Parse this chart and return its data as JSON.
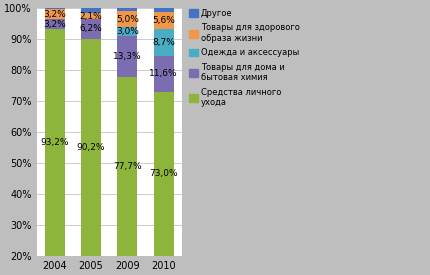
{
  "years": [
    "2004",
    "2005",
    "2009",
    "2010"
  ],
  "values": [
    [
      93.2,
      90.2,
      77.7,
      73.0
    ],
    [
      3.2,
      6.2,
      13.3,
      11.6
    ],
    [
      0.0,
      0.0,
      3.0,
      8.7
    ],
    [
      3.2,
      2.1,
      5.0,
      5.6
    ],
    [
      0.4,
      1.5,
      1.0,
      1.1
    ]
  ],
  "colors": [
    "#8DB53C",
    "#7B6DB0",
    "#4BACC6",
    "#F0974A",
    "#4472C4"
  ],
  "legend_labels": [
    "Другое",
    "Товары для здорового\nобраза жизни",
    "Одежда и аксессуары",
    "Товары для дома и\nбытовая химия",
    "Средства личного\nухода"
  ],
  "legend_colors": [
    "#4472C4",
    "#F0974A",
    "#4BACC6",
    "#7B6DB0",
    "#8DB53C"
  ],
  "yticks": [
    20,
    30,
    40,
    50,
    60,
    70,
    80,
    90,
    100
  ],
  "bar_width": 0.55,
  "background_color": "#BEBEBE",
  "plot_background": "#FFFFFF",
  "label_texts": [
    [
      "93,2%",
      "90,2%",
      "77,7%",
      "73,0%"
    ],
    [
      "3,2%",
      "6,2%",
      "13,3%",
      "11,6%"
    ],
    [
      "",
      "",
      "3,0%",
      "8,7%"
    ],
    [
      "3,2%",
      "2,1%",
      "5,0%",
      "5,6%"
    ],
    [
      "",
      "",
      "",
      ""
    ]
  ],
  "ymin": 20,
  "ymax": 100
}
